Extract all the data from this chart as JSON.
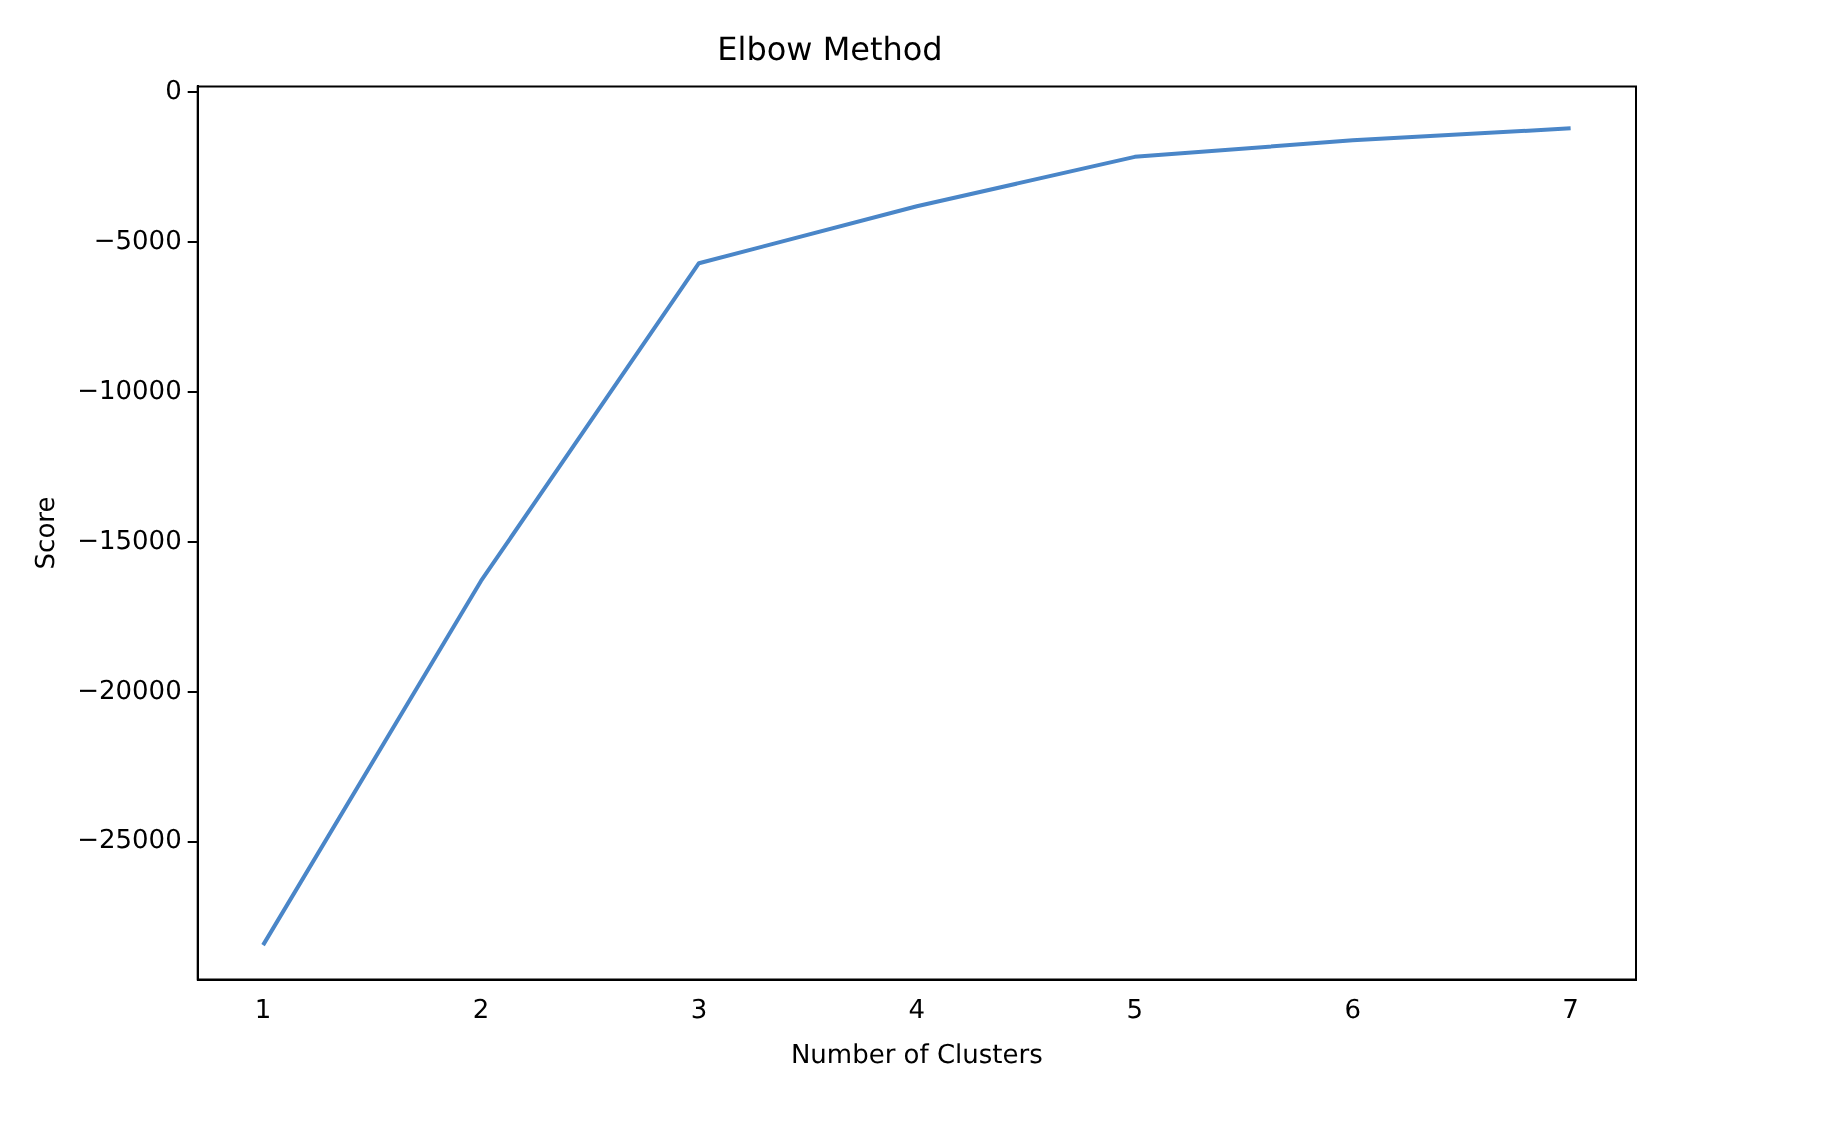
{
  "chart_data": {
    "type": "line",
    "title": "Elbow Method",
    "xlabel": "Number of Clusters",
    "ylabel": "Score",
    "x": [
      1,
      2,
      3,
      4,
      5,
      6,
      7
    ],
    "series": [
      {
        "color": "#4a86c8",
        "values": [
          -28450,
          -16300,
          -5700,
          -3800,
          -2150,
          -1600,
          -1200
        ]
      }
    ],
    "xlim": [
      0.7,
      7.3
    ],
    "xticks": [
      1,
      2,
      3,
      4,
      5,
      6,
      7
    ],
    "ylim": [
      -29600,
      200
    ],
    "yticks": [
      -25000,
      -20000,
      -15000,
      -10000,
      -5000,
      0
    ],
    "grid": false,
    "legend": false,
    "marker": "none",
    "line_style": "solid"
  }
}
